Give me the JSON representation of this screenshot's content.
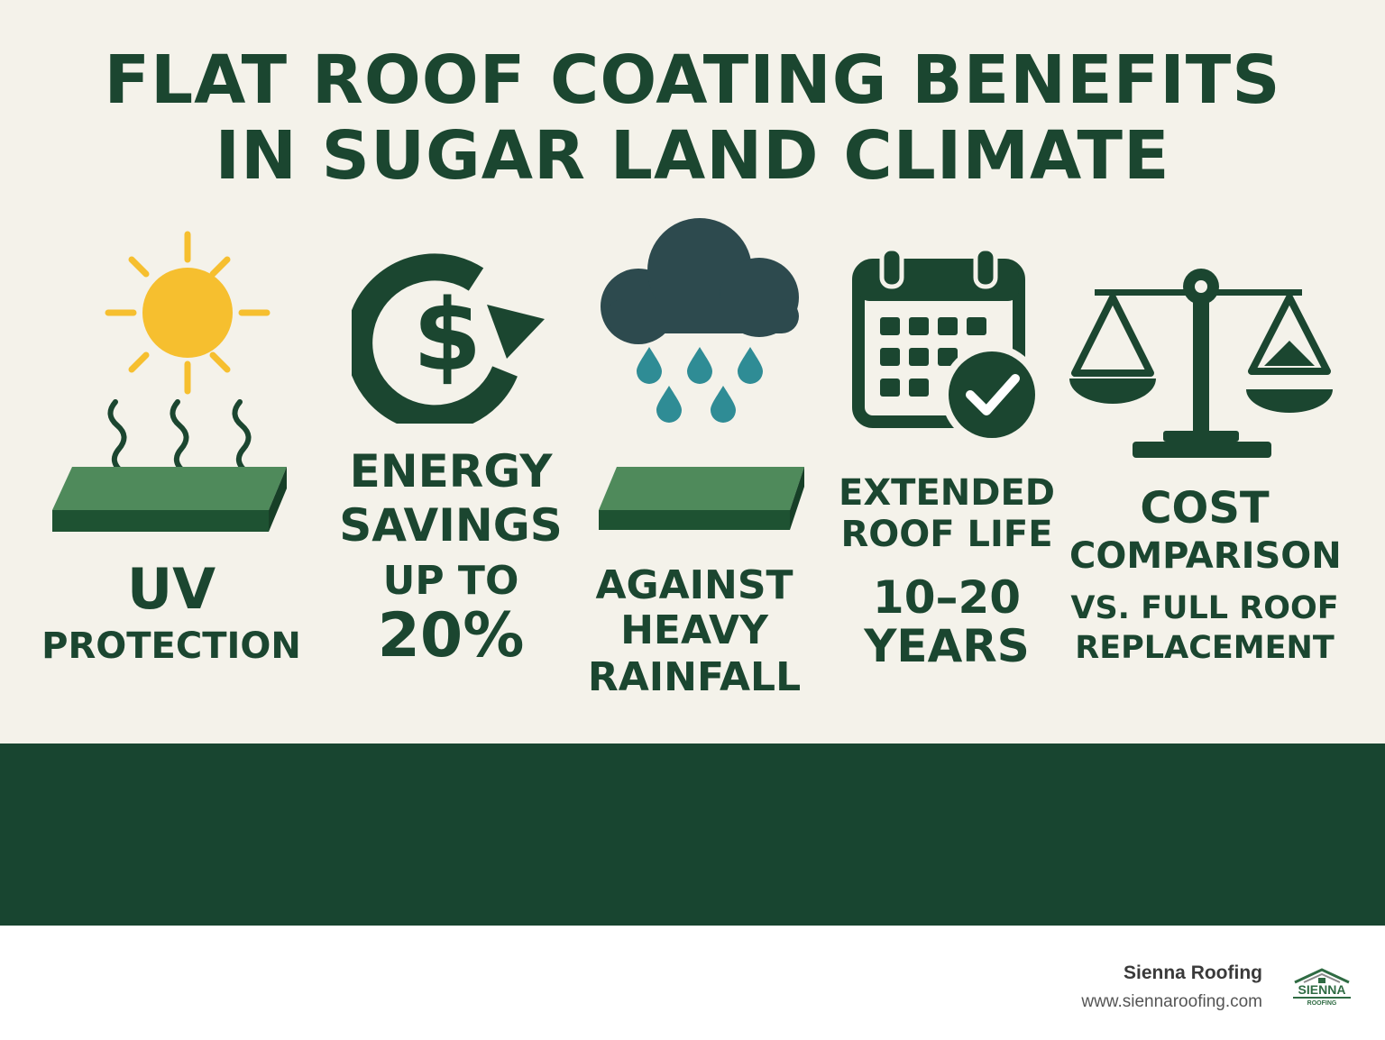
{
  "title": {
    "line1": "FLAT ROOF COATING BENEFITS",
    "line2": "IN SUGAR LAND CLIMATE"
  },
  "benefits": [
    {
      "icon": "sun-heat-icon",
      "heading": "UV",
      "detail": "PROTECTION"
    },
    {
      "icon": "dollar-cycle-icon",
      "heading_line1": "ENERGY",
      "heading_line2": "SAVINGS",
      "detail": "UP TO",
      "value": "20%"
    },
    {
      "icon": "rain-cloud-icon",
      "line1": "AGAINST",
      "line2": "HEAVY",
      "line3": "RAINFALL"
    },
    {
      "icon": "calendar-check-icon",
      "heading_line1": "EXTENDED",
      "heading_line2": "ROOF LIFE",
      "value": "10–20",
      "unit": "YEARS"
    },
    {
      "icon": "balance-scale-icon",
      "heading_line1": "COST",
      "heading_line2": "COMPARISON",
      "detail_line1": "VS. FULL ROOF",
      "detail_line2": "REPLACEMENT"
    }
  ],
  "footer": {
    "brand": "Sienna Roofing",
    "url": "www.siennaroofing.com",
    "logo_text": "SIENNA",
    "logo_subtext": "ROOFING"
  },
  "colors": {
    "background": "#f4f2ea",
    "primary": "#1b4630",
    "band": "#184530",
    "sun": "#f6bf2f",
    "roof_top": "#4f8a5b",
    "cloud": "#2d4a4e",
    "raindrop": "#2f8c95"
  }
}
